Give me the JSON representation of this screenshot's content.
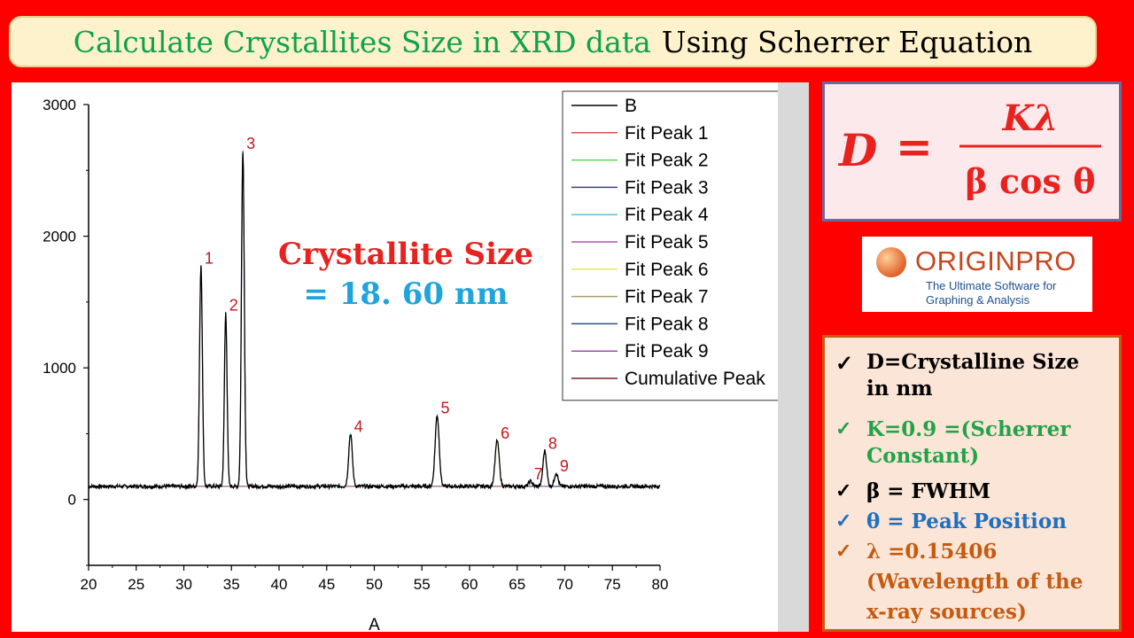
{
  "title": {
    "part1": "Calculate Crystallites Size in XRD data",
    "part2": "Using Scherrer Equation"
  },
  "formula": {
    "lhs": "D",
    "eq": "=",
    "numerator": "Kλ",
    "denominator": "β cos θ"
  },
  "origin": {
    "name": "ORIGINPRO",
    "tagline_1": "The Ultimate Software for",
    "tagline_2": "Graphing & Analysis"
  },
  "definitions": [
    {
      "check": "✓",
      "text_1": "D=Crystalline Size",
      "text_2": "in nm",
      "color": "#000000"
    },
    {
      "check": "✓",
      "text_1": "K=0.9 =(Scherrer",
      "text_2": "Constant)",
      "color": "#22a34a"
    },
    {
      "check": "✓",
      "text_1": "β = FWHM",
      "color": "#000000"
    },
    {
      "check": "✓",
      "text_1": "θ = Peak Position",
      "color": "#1f6fc2"
    },
    {
      "check": "✓",
      "text_1": "λ =0.15406",
      "text_2": "(Wavelength  of the",
      "text_3": "x-ray sources)",
      "color": "#c55a11"
    }
  ],
  "colors": {
    "background": "#ff0000",
    "result_label": "#e8221f",
    "result_value": "#1fa5dc",
    "peak_label": "#c4161c"
  },
  "chart_data": {
    "type": "line",
    "xlabel": "A",
    "ylabel": "",
    "xlim": [
      20,
      80
    ],
    "ylim": [
      -500,
      3000
    ],
    "x_ticks": [
      20,
      25,
      30,
      35,
      40,
      45,
      50,
      55,
      60,
      65,
      70,
      75,
      80
    ],
    "y_ticks": [
      0,
      1000,
      2000,
      3000
    ],
    "baseline": 100,
    "annotation": {
      "label": "Crystallite Size",
      "value": "= 18. 60 nm"
    },
    "peaks": [
      {
        "label": "1",
        "x": 31.8,
        "y": 1780,
        "fwhm": 0.35
      },
      {
        "label": "2",
        "x": 34.4,
        "y": 1420,
        "fwhm": 0.33
      },
      {
        "label": "3",
        "x": 36.2,
        "y": 2650,
        "fwhm": 0.35
      },
      {
        "label": "4",
        "x": 47.5,
        "y": 500,
        "fwhm": 0.45
      },
      {
        "label": "5",
        "x": 56.6,
        "y": 640,
        "fwhm": 0.5
      },
      {
        "label": "6",
        "x": 62.9,
        "y": 450,
        "fwhm": 0.5
      },
      {
        "label": "7",
        "x": 66.4,
        "y": 140,
        "fwhm": 0.45
      },
      {
        "label": "8",
        "x": 67.9,
        "y": 370,
        "fwhm": 0.45
      },
      {
        "label": "9",
        "x": 69.1,
        "y": 200,
        "fwhm": 0.45
      }
    ],
    "legend": [
      "B",
      "Fit Peak 1",
      "Fit Peak 2",
      "Fit Peak 3",
      "Fit Peak 4",
      "Fit Peak 5",
      "Fit Peak 6",
      "Fit Peak 7",
      "Fit Peak 8",
      "Fit Peak 9",
      "Cumulative Peak"
    ],
    "legend_colors": [
      "#000000",
      "#d9534f",
      "#5cd65c",
      "#3b3b8f",
      "#5bc0de",
      "#b94fb9",
      "#e8e85c",
      "#a8a070",
      "#2f4f7f",
      "#9a4fa8",
      "#7a1f2a"
    ],
    "legend_position": "top-right"
  }
}
